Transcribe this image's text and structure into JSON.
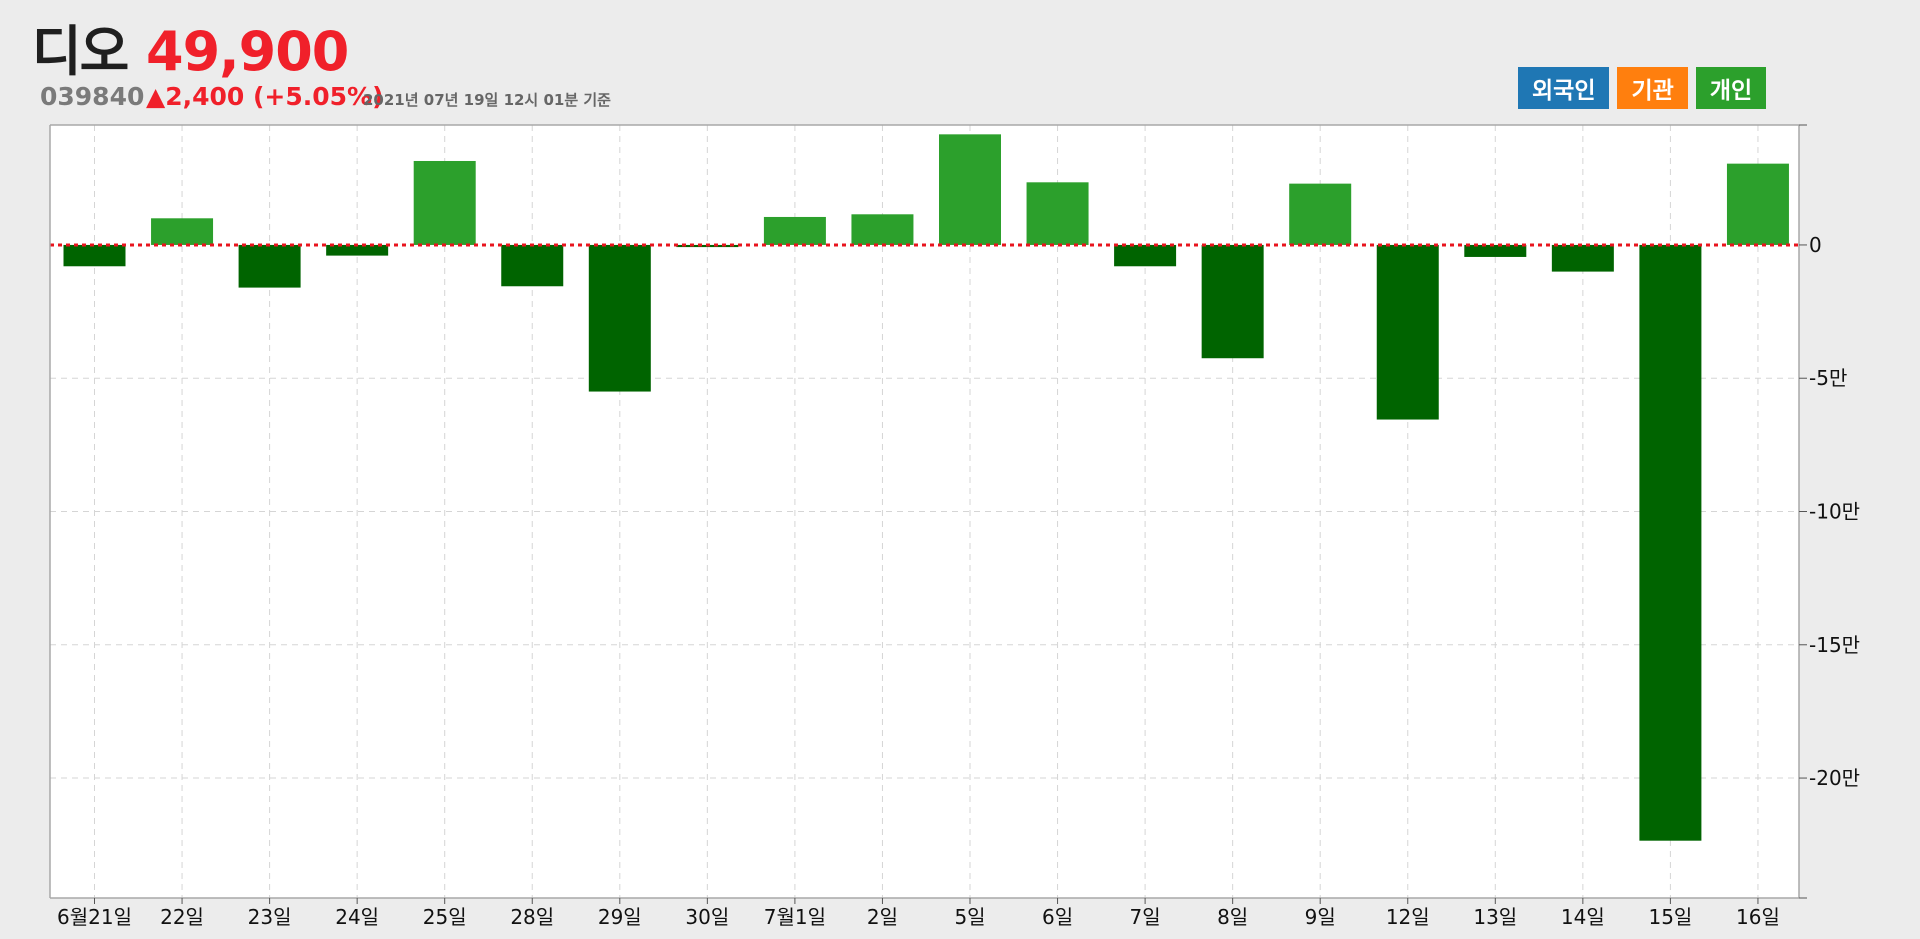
{
  "header": {
    "name": "디오",
    "price": "49,900",
    "code": "039840",
    "change": "▲2,400 (+5.05%)",
    "as_of": "2021년 07년 19일 12시 01분 기준"
  },
  "legend": {
    "items": [
      {
        "label": "외국인",
        "color": "#1f77b4"
      },
      {
        "label": "기관",
        "color": "#ff7f0e"
      },
      {
        "label": "개인",
        "color": "#2ca02c"
      }
    ]
  },
  "colors": {
    "positive_bar": "#2ca02c",
    "negative_bar": "#006400",
    "zero_line": "#e8141e",
    "grid": "#d5d5d5"
  },
  "chart_data": {
    "type": "bar",
    "categories": [
      "6월21일",
      "22일",
      "23일",
      "24일",
      "25일",
      "28일",
      "29일",
      "30일",
      "7월1일",
      "2일",
      "5일",
      "6일",
      "7일",
      "8일",
      "9일",
      "12일",
      "13일",
      "14일",
      "15일",
      "16일"
    ],
    "series": [
      {
        "values": [
          -8000,
          10000,
          -16000,
          -4000,
          31500,
          -15500,
          -55000,
          -800,
          10500,
          11500,
          41500,
          23500,
          -8000,
          -42500,
          23000,
          -65500,
          -4500,
          -10000,
          -223500,
          30500
        ]
      }
    ],
    "ylim": [
      -245000,
      45000
    ],
    "y_ticks": [
      0,
      -50000,
      -100000,
      -150000,
      -200000
    ],
    "y_tick_labels": [
      "0",
      "-5만",
      "-10만",
      "-15만",
      "-20만"
    ],
    "grid": true,
    "zero_line": "dotted",
    "legend_position": "top-right"
  }
}
